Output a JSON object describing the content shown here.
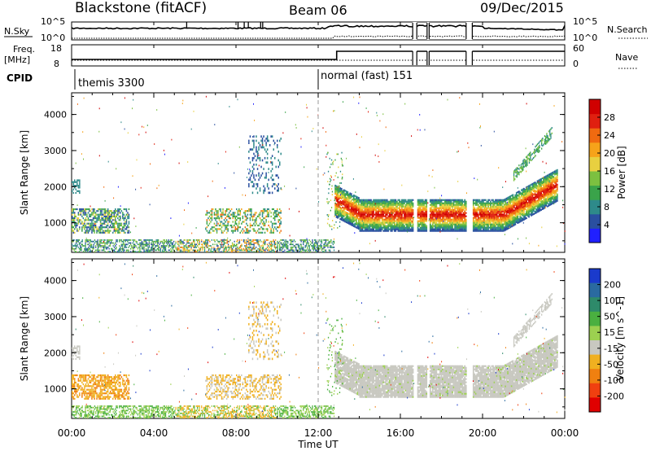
{
  "header": {
    "station": "Blackstone (fitACF)",
    "beam": "Beam 06",
    "date": "09/Dec/2015"
  },
  "top_panels": {
    "nsky_label": "N.Sky",
    "nsky_ticks": [
      "10^5",
      "10^0"
    ],
    "nsearch_label": "N.Search",
    "nsearch_ticks": [
      "10^5",
      "10^0"
    ],
    "freq_label_1": "Freq.",
    "freq_label_2": "[MHz]",
    "freq_ticks": [
      "18",
      "8"
    ],
    "nave_label": "Nave",
    "nave_ticks": [
      "60",
      "0"
    ],
    "cpid_label": "CPID",
    "cpid_segments": [
      {
        "start_hour": 0,
        "label": "themis 3300"
      },
      {
        "start_hour": 12,
        "label": "normal (fast) 151"
      }
    ]
  },
  "time_axis": {
    "label": "Time UT",
    "ticks": [
      "00:00",
      "04:00",
      "08:00",
      "12:00",
      "16:00",
      "20:00",
      "00:00"
    ]
  },
  "chart_data": [
    {
      "type": "heatmap",
      "title": "",
      "ylabel": "Slant Range [km]",
      "yticks": [
        "1000",
        "2000",
        "3000",
        "4000"
      ],
      "ylim": [
        180,
        4600
      ],
      "xlim_hours": [
        0,
        24
      ],
      "colorbar": {
        "label": "Power [dB]",
        "ticks": [
          "4",
          "8",
          "12",
          "16",
          "20",
          "24",
          "28"
        ],
        "colors": [
          "#2020ff",
          "#2a4fa0",
          "#2e8a8a",
          "#3aa34a",
          "#7cc040",
          "#e8d040",
          "#f6a31a",
          "#f06a10",
          "#e02010",
          "#d00000"
        ]
      }
    },
    {
      "type": "heatmap",
      "title": "",
      "ylabel": "Slant Range [km]",
      "yticks": [
        "1000",
        "2000",
        "3000",
        "4000"
      ],
      "ylim": [
        180,
        4600
      ],
      "xlim_hours": [
        0,
        24
      ],
      "colorbar": {
        "label": "Velocity [m s^-1]",
        "ticks": [
          "200",
          "100",
          "50",
          "15",
          "-15",
          "-50",
          "-100",
          "-200"
        ],
        "colors": [
          "#1a3acc",
          "#2a6aa0",
          "#2e8a6a",
          "#4ab040",
          "#9cd050",
          "#c8c8c0",
          "#f0b020",
          "#f08010",
          "#f04010",
          "#e00000"
        ]
      }
    }
  ]
}
